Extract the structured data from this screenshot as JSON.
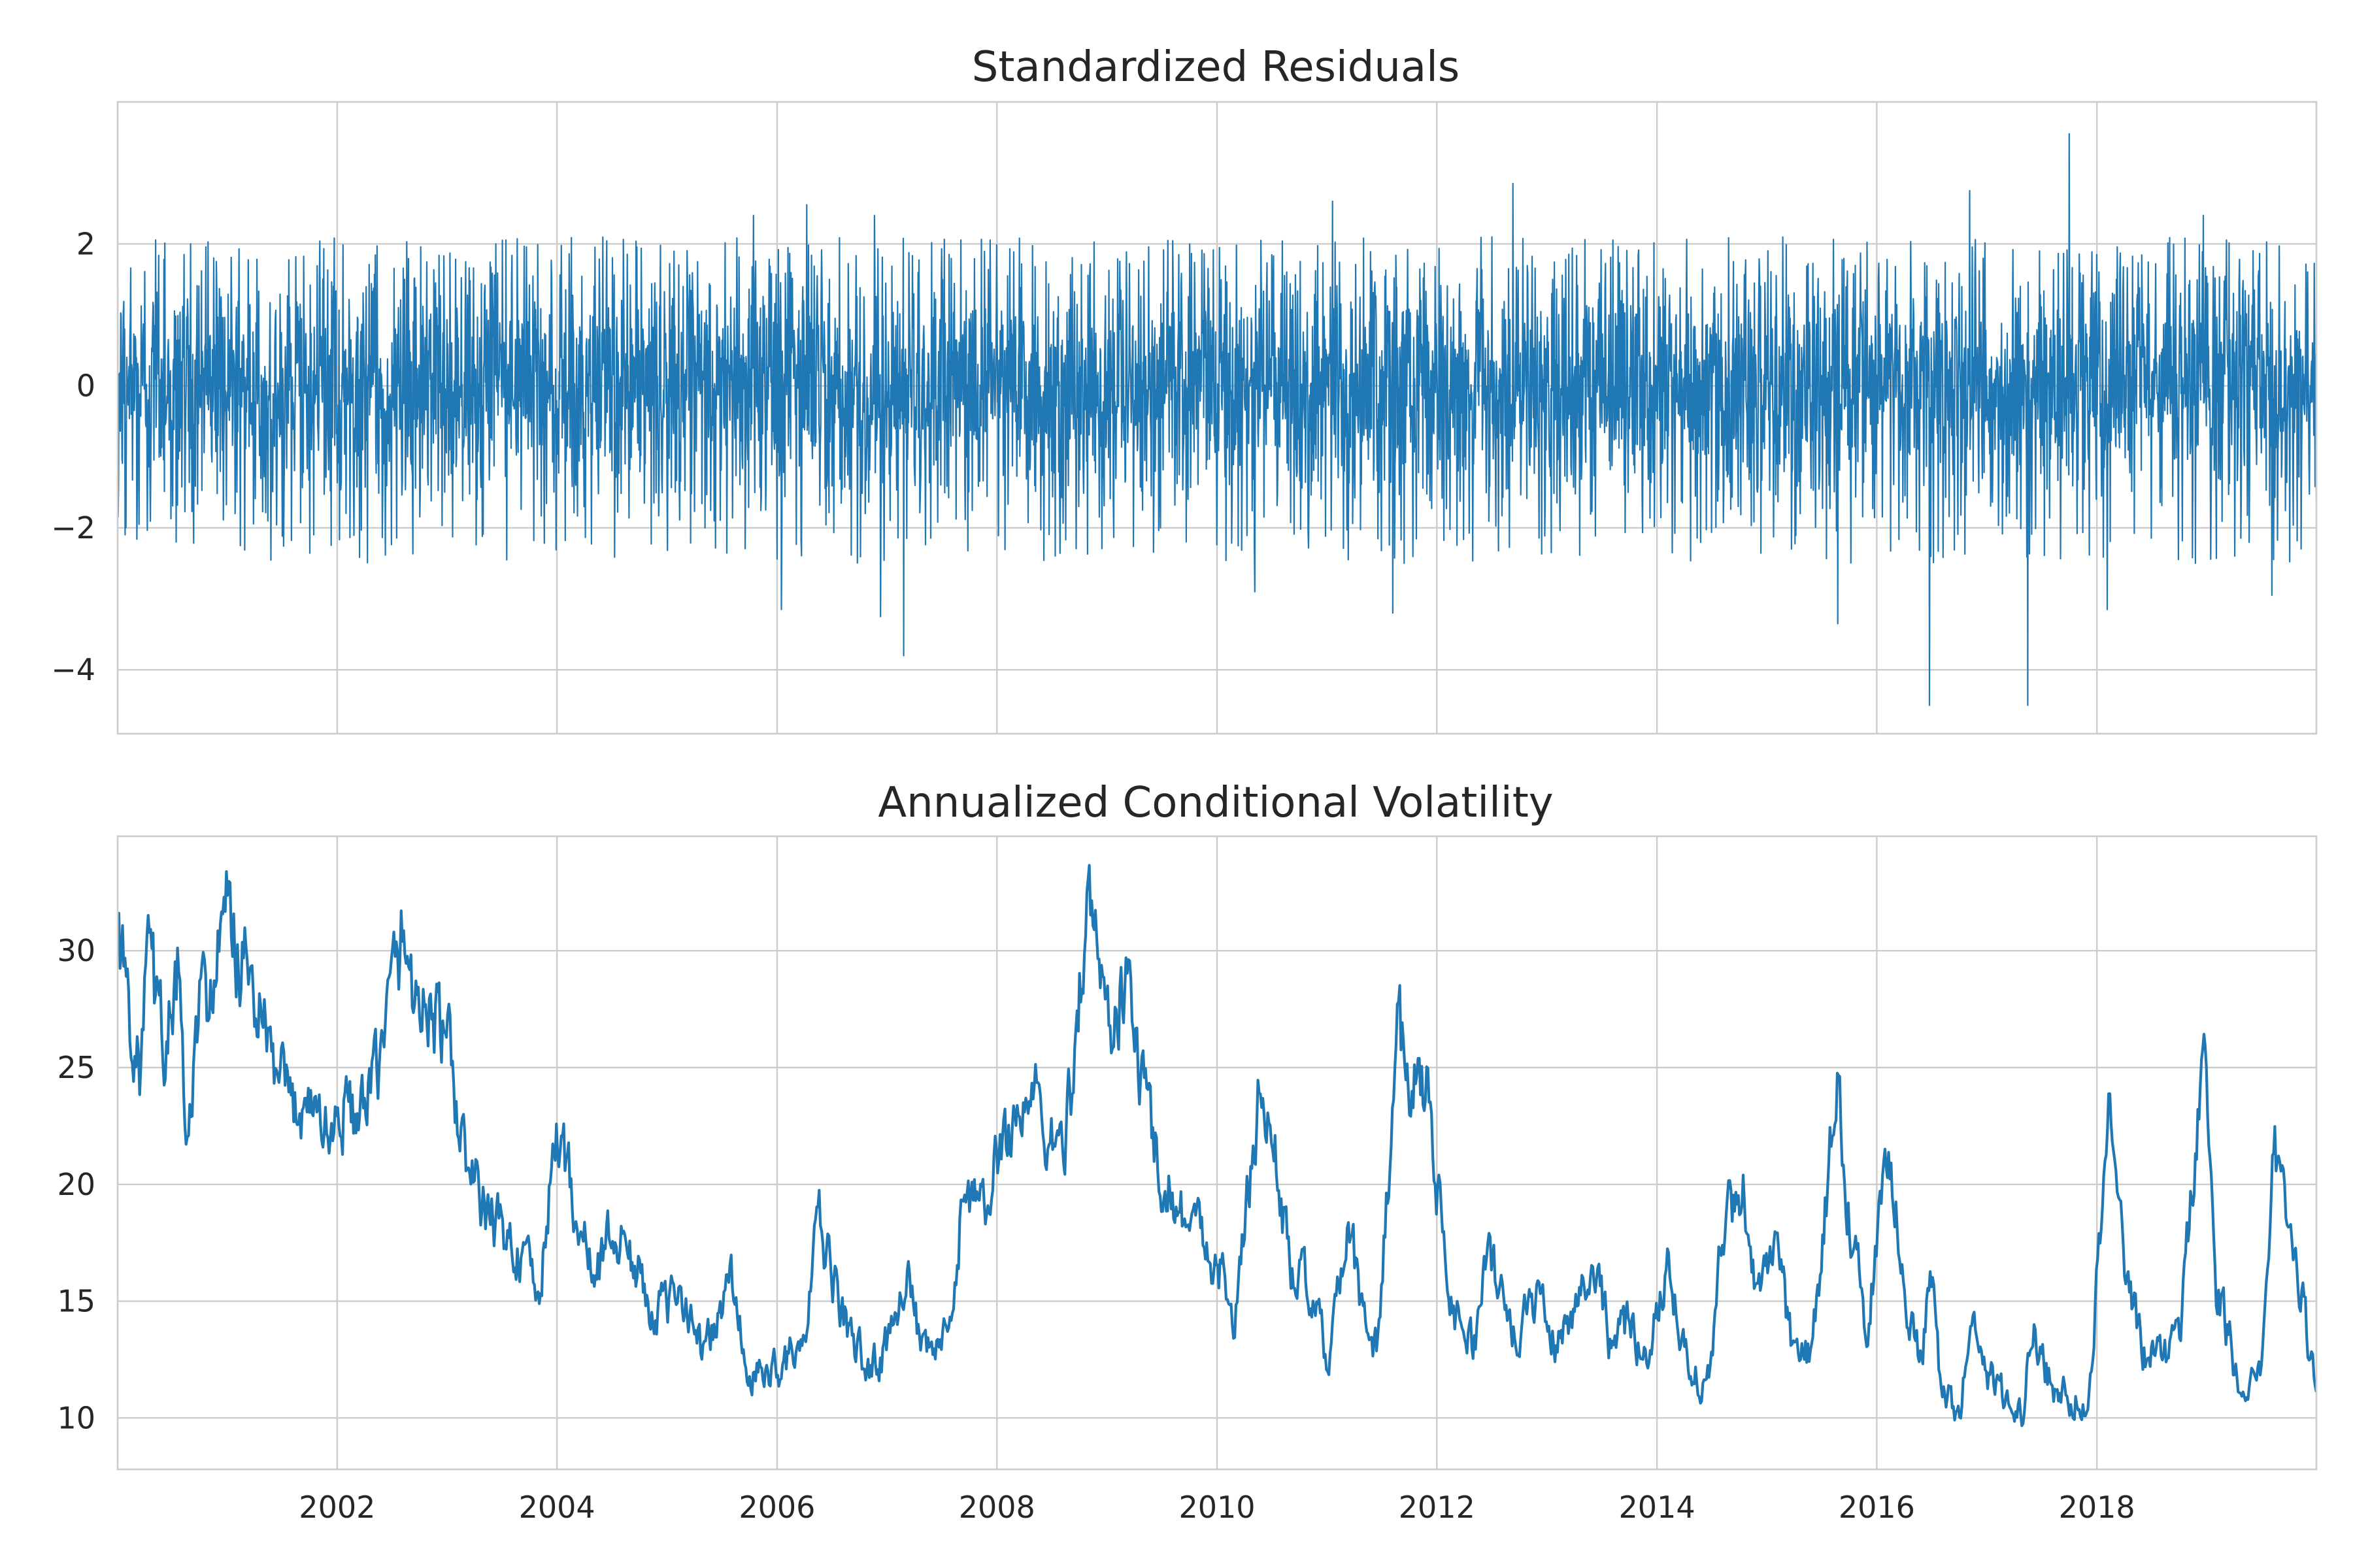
{
  "chart_data": [
    {
      "type": "line",
      "title": "Standardized Residuals",
      "xlim": [
        "2000-01-03",
        "2019-12-31"
      ],
      "ylim": [
        -4.9,
        4.0
      ],
      "yticks": [
        -4,
        -2,
        0,
        2
      ],
      "ytick_labels": [
        "−4",
        "−2",
        "0",
        "2"
      ],
      "xtick_labels": [],
      "grid": true,
      "color": "#1f77b4",
      "x_start": "2000-01-03",
      "x_end": "2019-12-31",
      "typical_range": [
        -1.6,
        1.6
      ],
      "peaks": [
        {
          "x": "2000-09-01",
          "y": 2.0
        },
        {
          "x": "2005-10-15",
          "y": 2.4
        },
        {
          "x": "2006-04-10",
          "y": 2.55
        },
        {
          "x": "2006-11-20",
          "y": 2.4
        },
        {
          "x": "2011-01-20",
          "y": 2.6
        },
        {
          "x": "2012-09-10",
          "y": 2.85
        },
        {
          "x": "2016-11-05",
          "y": 2.75
        },
        {
          "x": "2017-10-01",
          "y": 3.55
        },
        {
          "x": "2018-12-20",
          "y": 2.4
        }
      ],
      "troughs": [
        {
          "x": "2000-07-15",
          "y": -2.2
        },
        {
          "x": "2006-01-15",
          "y": -3.15
        },
        {
          "x": "2006-12-10",
          "y": -3.25
        },
        {
          "x": "2007-02-26",
          "y": -3.8
        },
        {
          "x": "2010-05-06",
          "y": -2.9
        },
        {
          "x": "2011-08-08",
          "y": -3.2
        },
        {
          "x": "2015-08-24",
          "y": -3.35
        },
        {
          "x": "2016-06-24",
          "y": -4.5
        },
        {
          "x": "2017-05-17",
          "y": -4.5
        },
        {
          "x": "2018-02-05",
          "y": -3.15
        },
        {
          "x": "2019-08-05",
          "y": -2.95
        }
      ]
    },
    {
      "type": "line",
      "title": "Annualized Conditional Volatility",
      "xlim": [
        "2000-01-03",
        "2019-12-31"
      ],
      "ylim": [
        7.8,
        34.9
      ],
      "yticks": [
        10,
        15,
        20,
        25,
        30
      ],
      "ytick_labels": [
        "10",
        "15",
        "20",
        "25",
        "30"
      ],
      "xtick_labels": [
        "2002",
        "2004",
        "2006",
        "2008",
        "2010",
        "2012",
        "2014",
        "2016",
        "2018"
      ],
      "grid": true,
      "color": "#1f77b4",
      "x": [
        "2000-01-03",
        "2000-02-01",
        "2000-03-15",
        "2000-04-15",
        "2000-05-15",
        "2000-06-10",
        "2000-07-20",
        "2000-08-20",
        "2000-10-01",
        "2000-11-15",
        "2001-01-01",
        "2001-02-01",
        "2001-04-01",
        "2001-06-01",
        "2001-08-01",
        "2001-10-01",
        "2001-12-01",
        "2002-02-01",
        "2002-04-01",
        "2002-06-01",
        "2002-08-01",
        "2002-09-20",
        "2002-11-01",
        "2003-01-01",
        "2003-03-01",
        "2003-05-01",
        "2003-07-01",
        "2003-09-01",
        "2003-11-01",
        "2004-01-01",
        "2004-03-01",
        "2004-05-01",
        "2004-07-01",
        "2004-09-01",
        "2004-11-01",
        "2005-01-01",
        "2005-03-01",
        "2005-04-20",
        "2005-06-01",
        "2005-08-01",
        "2005-10-01",
        "2005-12-01",
        "2006-02-01",
        "2006-04-01",
        "2006-05-20",
        "2006-07-01",
        "2006-09-01",
        "2006-11-01",
        "2007-01-01",
        "2007-03-01",
        "2007-05-01",
        "2007-08-01",
        "2007-09-15",
        "2007-11-15",
        "2008-01-20",
        "2008-03-15",
        "2008-05-01",
        "2008-07-15",
        "2008-09-01",
        "2008-10-20",
        "2008-11-20",
        "2009-01-01",
        "2009-03-10",
        "2009-05-01",
        "2009-07-01",
        "2009-09-01",
        "2009-11-01",
        "2010-01-10",
        "2010-03-01",
        "2010-05-25",
        "2010-07-15",
        "2010-09-01",
        "2010-11-01",
        "2011-01-01",
        "2011-03-20",
        "2011-05-01",
        "2011-06-20",
        "2011-08-20",
        "2011-10-01",
        "2011-12-01",
        "2012-01-10",
        "2012-03-01",
        "2012-05-01",
        "2012-06-20",
        "2012-08-01",
        "2012-10-01",
        "2012-12-01",
        "2013-02-01",
        "2013-04-01",
        "2013-06-20",
        "2013-08-01",
        "2013-10-01",
        "2013-12-01",
        "2014-02-05",
        "2014-04-01",
        "2014-05-20",
        "2014-07-01",
        "2014-08-05",
        "2014-10-15",
        "2014-12-01",
        "2015-02-01",
        "2015-04-01",
        "2015-06-01",
        "2015-08-25",
        "2015-10-01",
        "2015-12-01",
        "2016-02-10",
        "2016-04-01",
        "2016-06-01",
        "2016-06-27",
        "2016-08-01",
        "2016-10-01",
        "2016-11-10",
        "2017-01-01",
        "2017-03-01",
        "2017-05-01",
        "2017-06-01",
        "2017-08-15",
        "2017-10-01",
        "2017-12-01",
        "2018-02-10",
        "2018-04-01",
        "2018-06-01",
        "2018-08-01",
        "2018-10-01",
        "2018-12-25",
        "2019-02-01",
        "2019-04-01",
        "2019-05-15",
        "2019-07-01",
        "2019-08-15",
        "2019-10-01",
        "2019-11-15",
        "2019-12-31"
      ],
      "values": [
        31.5,
        28.5,
        24.5,
        30.0,
        27.0,
        26.0,
        29.0,
        21.0,
        27.5,
        28.5,
        31.5,
        30.0,
        28.0,
        25.0,
        23.0,
        24.0,
        22.0,
        23.5,
        22.5,
        26.0,
        30.5,
        28.0,
        27.5,
        26.0,
        21.0,
        19.0,
        18.0,
        17.0,
        15.0,
        22.5,
        19.0,
        16.0,
        18.0,
        17.0,
        15.0,
        14.5,
        15.5,
        13.0,
        13.5,
        16.0,
        11.5,
        12.0,
        12.5,
        13.0,
        18.5,
        16.0,
        13.5,
        12.0,
        13.0,
        16.5,
        12.5,
        13.5,
        20.5,
        18.5,
        22.0,
        23.0,
        24.0,
        21.0,
        23.5,
        31.5,
        31.0,
        27.0,
        28.5,
        24.0,
        20.5,
        19.0,
        18.0,
        16.5,
        14.0,
        24.5,
        21.0,
        16.5,
        15.5,
        12.5,
        18.0,
        14.0,
        13.0,
        26.5,
        25.0,
        24.5,
        19.0,
        14.5,
        13.0,
        17.0,
        15.0,
        13.5,
        15.5,
        13.0,
        15.0,
        16.5,
        13.0,
        14.0,
        12.5,
        17.0,
        13.0,
        11.5,
        12.0,
        18.0,
        20.0,
        15.0,
        17.0,
        12.5,
        13.0,
        24.5,
        19.0,
        13.5,
        22.5,
        15.0,
        12.0,
        17.0,
        11.0,
        10.5,
        13.5,
        12.0,
        11.0,
        10.0,
        14.0,
        11.0,
        11.0,
        10.5,
        23.5,
        16.5,
        13.0,
        12.5,
        13.5,
        26.0,
        16.0,
        12.5,
        11.0,
        11.5,
        22.0,
        17.0,
        15.0,
        11.0
      ]
    }
  ]
}
